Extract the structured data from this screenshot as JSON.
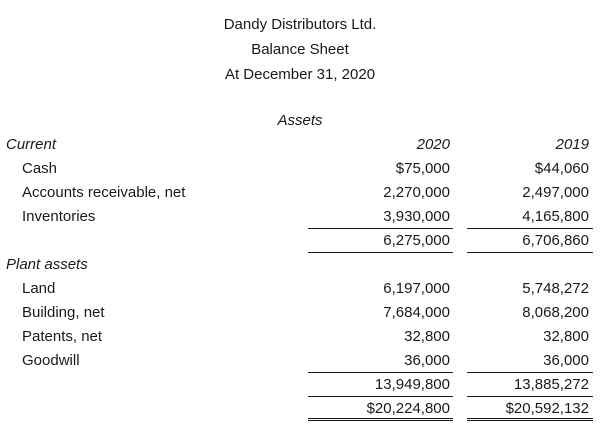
{
  "colors": {
    "background": "#ffffff",
    "text": "#1a1a1a",
    "rule": "#1a1a1a"
  },
  "header": {
    "company": "Dandy Distributors Ltd.",
    "statement": "Balance Sheet",
    "date_line": "At December 31, 2020"
  },
  "table": {
    "section_title": "Assets",
    "columns": [
      "2020",
      "2019"
    ],
    "sections": [
      {
        "label": "Current",
        "rows": [
          {
            "label": "Cash",
            "v2020": "$75,000",
            "v2019": "$44,060"
          },
          {
            "label": "Accounts receivable, net",
            "v2020": "2,270,000",
            "v2019": "2,497,000"
          },
          {
            "label": "Inventories",
            "v2020": "3,930,000",
            "v2019": "4,165,800",
            "underline": true
          }
        ],
        "subtotal": {
          "v2020": "6,275,000",
          "v2019": "6,706,860",
          "underline": true
        }
      },
      {
        "label": "Plant assets",
        "rows": [
          {
            "label": "Land",
            "v2020": "6,197,000",
            "v2019": "5,748,272"
          },
          {
            "label": "Building, net",
            "v2020": "7,684,000",
            "v2019": "8,068,200"
          },
          {
            "label": "Patents, net",
            "v2020": "32,800",
            "v2019": "32,800"
          },
          {
            "label": "Goodwill",
            "v2020": "36,000",
            "v2019": "36,000",
            "underline": true
          }
        ],
        "subtotal": {
          "v2020": "13,949,800",
          "v2019": "13,885,272",
          "underline": true
        }
      }
    ],
    "total": {
      "v2020": "$20,224,800",
      "v2019": "$20,592,132",
      "double_underline": true
    }
  }
}
